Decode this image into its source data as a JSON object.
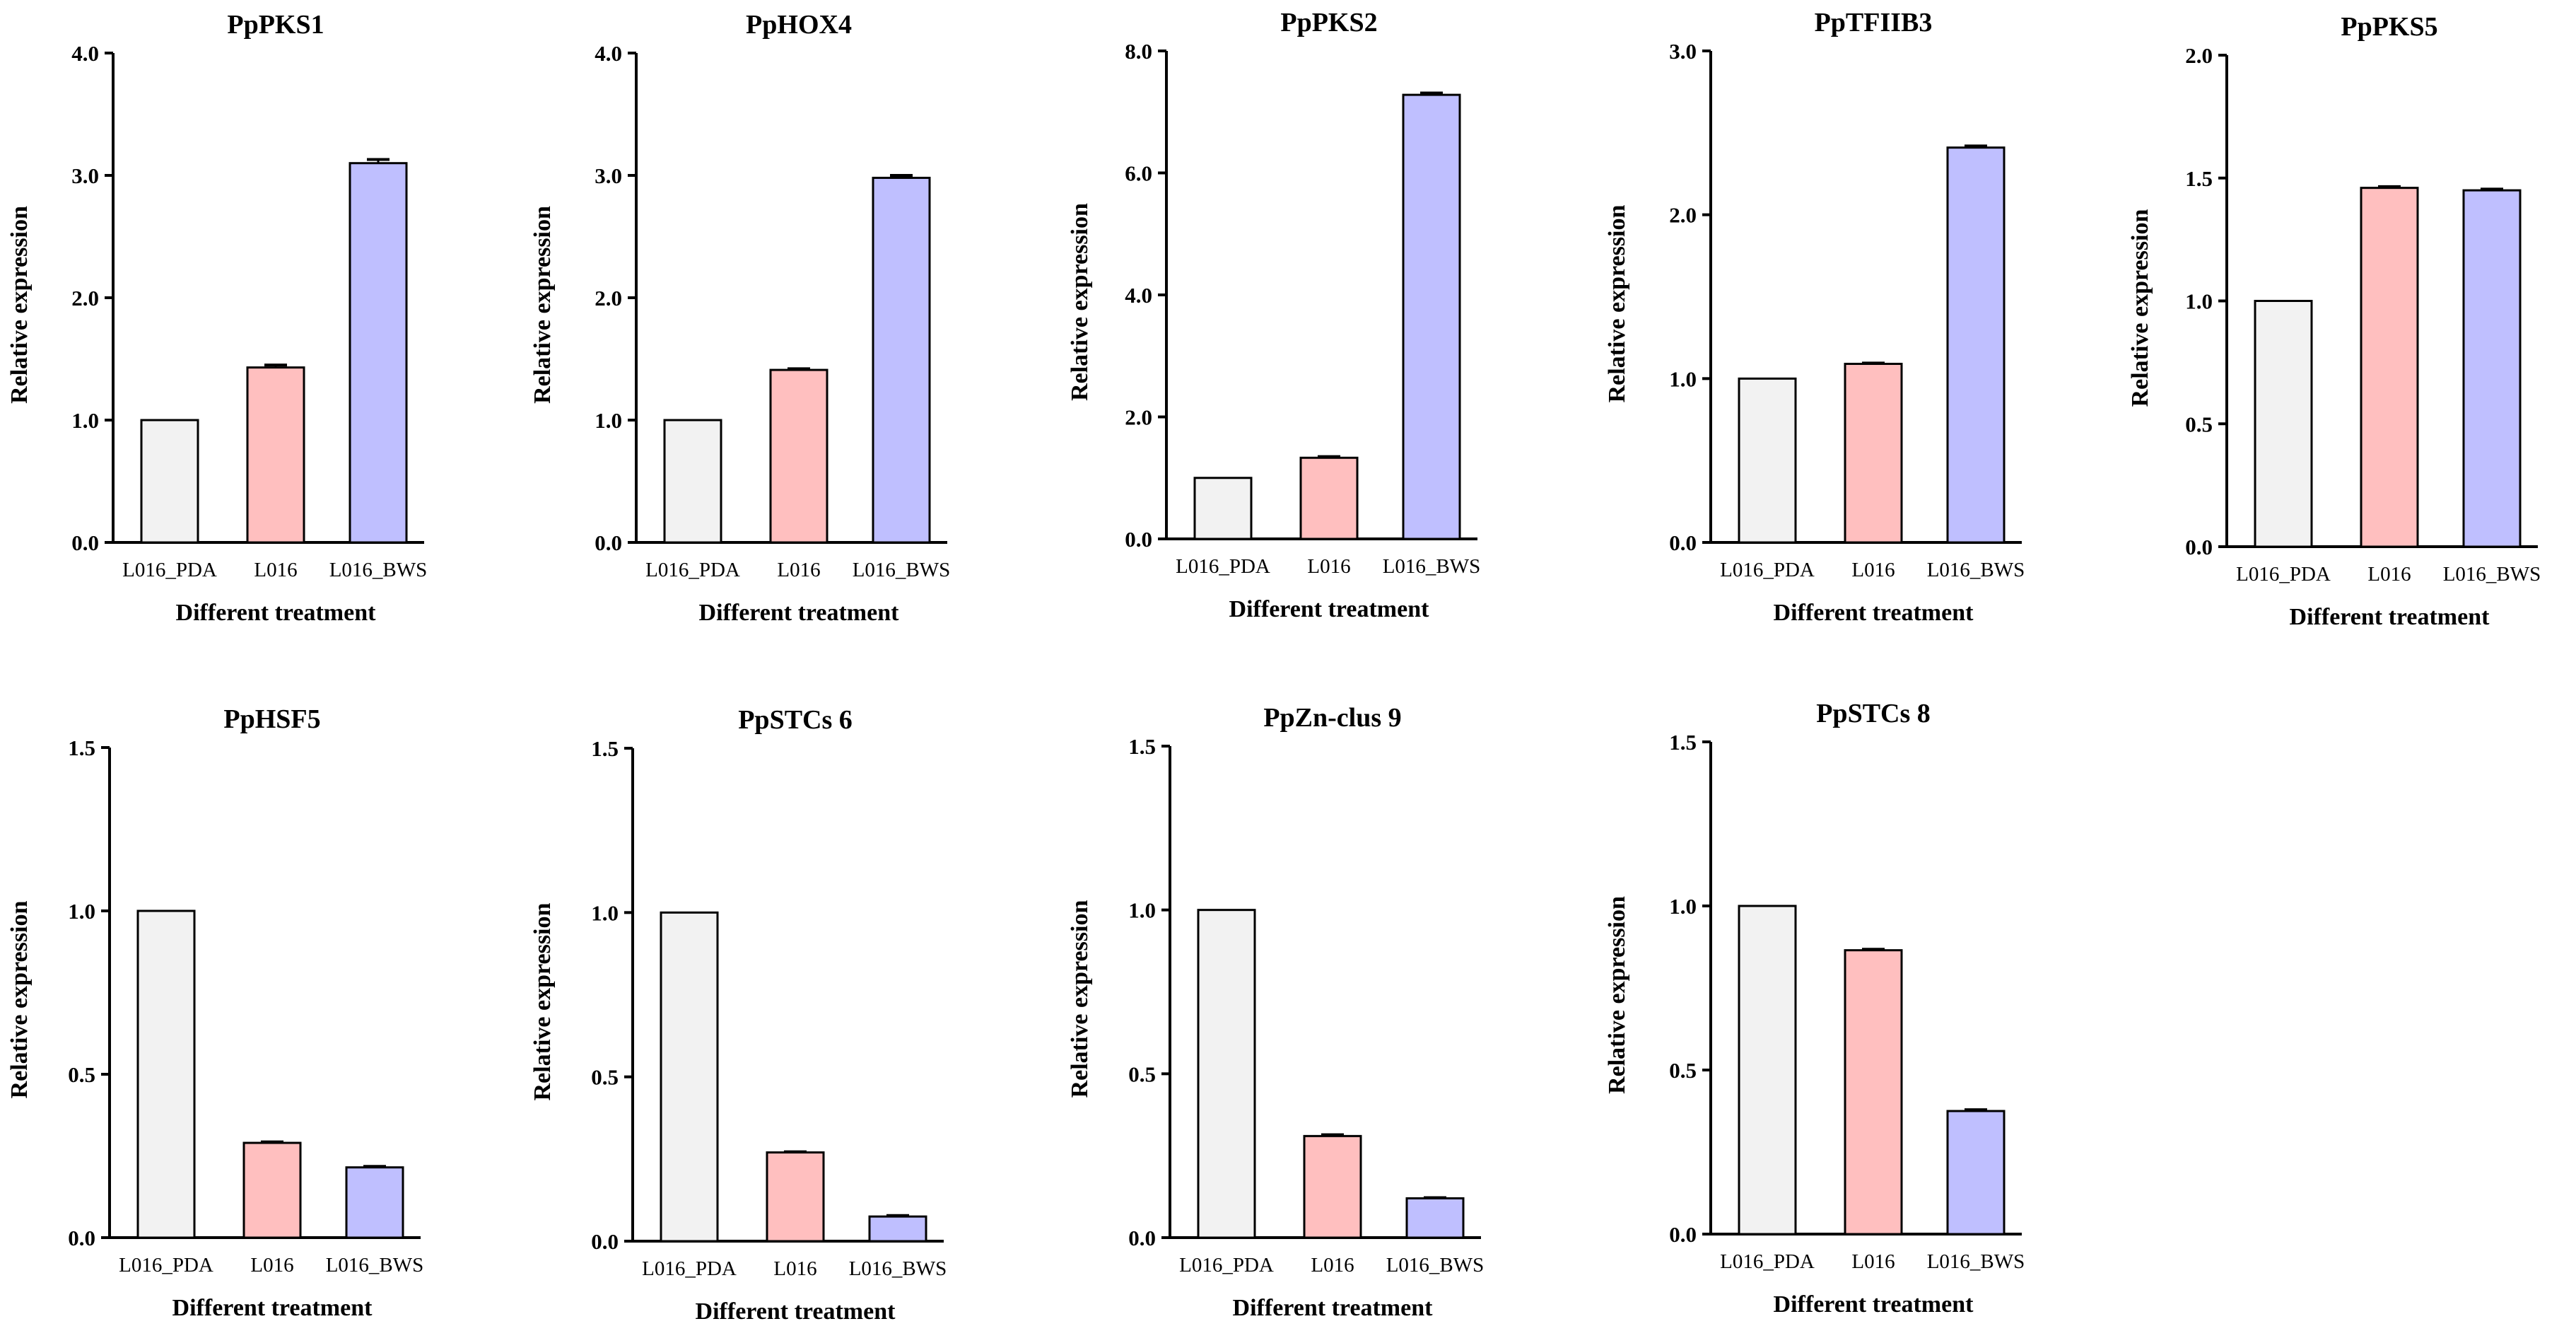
{
  "palette": {
    "L016_PDA": "#f2f2f2",
    "L016": "#ffbfbf",
    "L016_BWS": "#bfbfff",
    "axis": "#000000"
  },
  "chart_data": [
    {
      "type": "bar",
      "title": "PpPKS1",
      "xlabel": "Different treatment",
      "ylabel": "Relative expression",
      "categories": [
        "L016_PDA",
        "L016",
        "L016_BWS"
      ],
      "values": [
        1.0,
        1.43,
        3.1
      ],
      "errors": [
        0,
        0.02,
        0.03
      ],
      "ylim": [
        0,
        4.0
      ],
      "yticks": [
        0,
        1,
        2,
        3,
        4
      ],
      "ytick_labels": [
        "0.0",
        "1.0",
        "2.0",
        "3.0",
        "4.0"
      ]
    },
    {
      "type": "bar",
      "title": "PpHOX4",
      "xlabel": "Different treatment",
      "ylabel": "Relative expression",
      "categories": [
        "L016_PDA",
        "L016",
        "L016_BWS"
      ],
      "values": [
        1.0,
        1.41,
        2.98
      ],
      "errors": [
        0,
        0.01,
        0.02
      ],
      "ylim": [
        0,
        4.0
      ],
      "yticks": [
        0,
        1,
        2,
        3,
        4
      ],
      "ytick_labels": [
        "0.0",
        "1.0",
        "2.0",
        "3.0",
        "4.0"
      ]
    },
    {
      "type": "bar",
      "title": "PpPKS2",
      "xlabel": "Different treatment",
      "ylabel": "Relative expression",
      "categories": [
        "L016_PDA",
        "L016",
        "L016_BWS"
      ],
      "values": [
        1.0,
        1.33,
        7.28
      ],
      "errors": [
        0,
        0.02,
        0.03
      ],
      "ylim": [
        0,
        8.0
      ],
      "yticks": [
        0,
        2,
        4,
        6,
        8
      ],
      "ytick_labels": [
        "0.0",
        "2.0",
        "4.0",
        "6.0",
        "8.0"
      ]
    },
    {
      "type": "bar",
      "title": "PpTFIIB3",
      "xlabel": "Different treatment",
      "ylabel": "Relative expression",
      "categories": [
        "L016_PDA",
        "L016",
        "L016_BWS"
      ],
      "values": [
        1.0,
        1.09,
        2.41
      ],
      "errors": [
        0,
        0.005,
        0.01
      ],
      "ylim": [
        0,
        3.0
      ],
      "yticks": [
        0,
        1,
        2,
        3
      ],
      "ytick_labels": [
        "0.0",
        "1.0",
        "2.0",
        "3.0"
      ]
    },
    {
      "type": "bar",
      "title": "PpPKS5",
      "xlabel": "Different treatment",
      "ylabel": "Relative expression",
      "categories": [
        "L016_PDA",
        "L016",
        "L016_BWS"
      ],
      "values": [
        1.0,
        1.46,
        1.45
      ],
      "errors": [
        0,
        0.005,
        0.005
      ],
      "ylim": [
        0,
        2.0
      ],
      "yticks": [
        0,
        0.5,
        1,
        1.5,
        2
      ],
      "ytick_labels": [
        "0.0",
        "0.5",
        "1.0",
        "1.5",
        "2.0"
      ]
    },
    {
      "type": "bar",
      "title": "PpHSF5",
      "xlabel": "Different treatment",
      "ylabel": "Relative expression",
      "categories": [
        "L016_PDA",
        "L016",
        "L016_BWS"
      ],
      "values": [
        1.0,
        0.29,
        0.215
      ],
      "errors": [
        0,
        0.003,
        0.003
      ],
      "ylim": [
        0,
        1.5
      ],
      "yticks": [
        0,
        0.5,
        1,
        1.5
      ],
      "ytick_labels": [
        "0.0",
        "0.5",
        "1.0",
        "1.5"
      ]
    },
    {
      "type": "bar",
      "title": "PpSTCs 6",
      "xlabel": "Different treatment",
      "ylabel": "Relative expression",
      "categories": [
        "L016_PDA",
        "L016",
        "L016_BWS"
      ],
      "values": [
        1.0,
        0.27,
        0.075
      ],
      "errors": [
        0,
        0.002,
        0.003
      ],
      "ylim": [
        0,
        1.5
      ],
      "yticks": [
        0,
        0.5,
        1,
        1.5
      ],
      "ytick_labels": [
        "0.0",
        "0.5",
        "1.0",
        "1.5"
      ]
    },
    {
      "type": "bar",
      "title": "PpZn-clus 9",
      "xlabel": "Different treatment",
      "ylabel": "Relative expression",
      "categories": [
        "L016_PDA",
        "L016",
        "L016_BWS"
      ],
      "values": [
        1.0,
        0.31,
        0.12
      ],
      "errors": [
        0,
        0.004,
        0.002
      ],
      "ylim": [
        0,
        1.5
      ],
      "yticks": [
        0,
        0.5,
        1,
        1.5
      ],
      "ytick_labels": [
        "0.0",
        "0.5",
        "1.0",
        "1.5"
      ]
    },
    {
      "type": "bar",
      "title": "PpSTCs 8",
      "xlabel": "Different treatment",
      "ylabel": "Relative expression",
      "categories": [
        "L016_PDA",
        "L016",
        "L016_BWS"
      ],
      "values": [
        1.0,
        0.865,
        0.375
      ],
      "errors": [
        0,
        0.003,
        0.004
      ],
      "ylim": [
        0,
        1.5
      ],
      "yticks": [
        0,
        0.5,
        1,
        1.5
      ],
      "ytick_labels": [
        "0.0",
        "0.5",
        "1.0",
        "1.5"
      ]
    }
  ]
}
